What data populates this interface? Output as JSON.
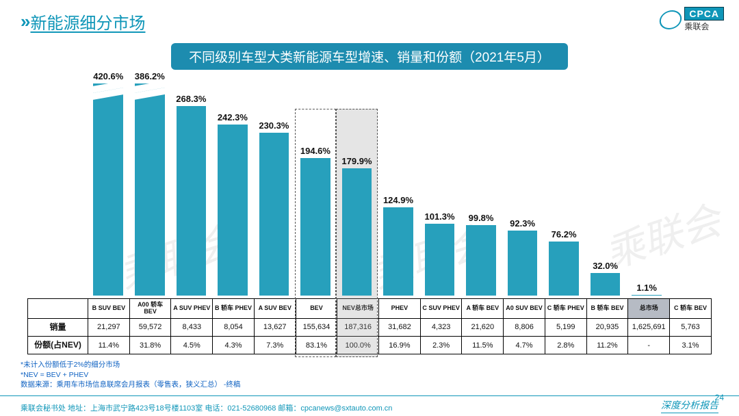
{
  "page_title": "新能源细分市场",
  "chart_title": "不同级别车型大类新能源车型增速、销量和份额（2021年5月）",
  "logo": {
    "badge": "CPCA",
    "sub": "乘联会"
  },
  "colors": {
    "brand": "#0f96b8",
    "bar": "#27a0bc",
    "chart_title_bg": "#1d8caf",
    "highlight_fill": "rgba(150,150,150,0.25)",
    "total_col_bg": "#b6bbc4"
  },
  "chart": {
    "type": "bar",
    "display_max_pct": 300,
    "bar_width_ratio": 0.72,
    "categories": [
      "B SUV BEV",
      "A00 轿车 BEV",
      "A SUV PHEV",
      "B 轿车 PHEV",
      "A SUV BEV",
      "BEV",
      "NEV总市场",
      "PHEV",
      "C SUV PHEV",
      "A 轿车 BEV",
      "A0 SUV BEV",
      "C 轿车 PHEV",
      "B 轿车 BEV",
      "总市场",
      "C 轿车 BEV"
    ],
    "values_pct": [
      420.6,
      386.2,
      268.3,
      242.3,
      230.3,
      194.6,
      179.9,
      124.9,
      101.3,
      99.8,
      92.3,
      76.2,
      32.0,
      1.1,
      null
    ],
    "labels": [
      "420.6%",
      "386.2%",
      "268.3%",
      "242.3%",
      "230.3%",
      "194.6%",
      "179.9%",
      "124.9%",
      "101.3%",
      "99.8%",
      "92.3%",
      "76.2%",
      "32.0%",
      "1.1%",
      ""
    ],
    "axis_break_at_pct": 290,
    "break_indices": [
      0,
      1
    ],
    "highlight_indices": [
      5,
      6
    ],
    "highlight_solid_index": 6,
    "total_col_index": 13,
    "label_fontsize": 13,
    "label_fontweight": "bold"
  },
  "table": {
    "row_headers": [
      "",
      "销量",
      "份额(占NEV)"
    ],
    "rows": [
      [
        "B SUV BEV",
        "A00 轿车 BEV",
        "A SUV PHEV",
        "B 轿车 PHEV",
        "A SUV BEV",
        "BEV",
        "NEV总市场",
        "PHEV",
        "C SUV PHEV",
        "A 轿车 BEV",
        "A0 SUV BEV",
        "C 轿车 PHEV",
        "B 轿车 BEV",
        "总市场",
        "C 轿车 BEV"
      ],
      [
        "21,297",
        "59,572",
        "8,433",
        "8,054",
        "13,627",
        "155,634",
        "187,316",
        "31,682",
        "4,323",
        "21,620",
        "8,806",
        "5,199",
        "20,935",
        "1,625,691",
        "5,763"
      ],
      [
        "11.4%",
        "31.8%",
        "4.5%",
        "4.3%",
        "7.3%",
        "83.1%",
        "100.0%",
        "16.9%",
        "2.3%",
        "11.5%",
        "4.7%",
        "2.8%",
        "11.2%",
        "-",
        "3.1%"
      ]
    ]
  },
  "notes": {
    "line1": "*未计入份额低于2%的细分市场",
    "line2": "*NEV  =  BEV  +  PHEV",
    "line3": "数据来源：乘用车市场信息联席会月报表（零售表，狭义汇总）  -终稿"
  },
  "footer": {
    "left": "乘联会秘书处   地址：上海市武宁路423号18号楼1103室   电话：021-52680968     邮箱：cpcanews@sxtauto.com.cn",
    "report": "深度分析报告",
    "page": "24"
  },
  "watermark": "乘联会"
}
